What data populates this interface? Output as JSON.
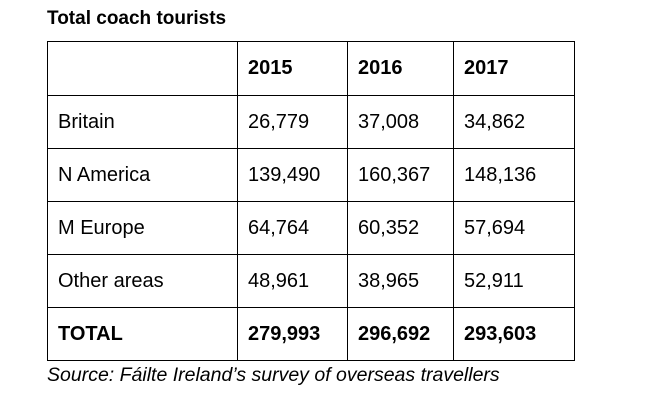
{
  "title": "Total coach tourists",
  "table": {
    "columns": [
      "2015",
      "2016",
      "2017"
    ],
    "rows": [
      [
        "Britain",
        "26,779",
        "37,008",
        "34,862"
      ],
      [
        "N America",
        "139,490",
        "160,367",
        "148,136"
      ],
      [
        "M Europe",
        "64,764",
        "60,352",
        "57,694"
      ],
      [
        "Other areas",
        "48,961",
        "38,965",
        "52,911"
      ]
    ],
    "total": [
      "TOTAL",
      "279,993",
      "296,692",
      "293,603"
    ]
  },
  "source": "Source: Fáilte Ireland’s survey of overseas travellers"
}
